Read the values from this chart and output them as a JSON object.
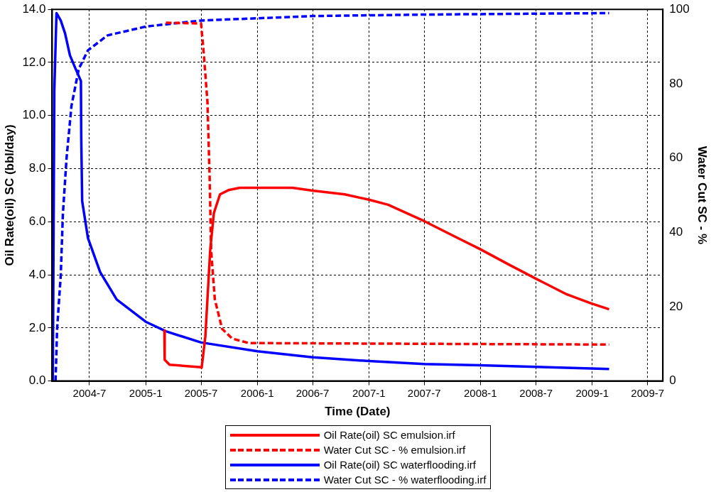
{
  "chart_data": {
    "type": "line",
    "xlabel": "Time (Date)",
    "ylabel": "Oil Rate(oil) SC (bbl/day)",
    "y2label": "Water Cut SC - %",
    "xlim": [
      "2004-03-01",
      "2009-08-20"
    ],
    "xticks": [
      {
        "value": "2004-07-01",
        "label": "2004-7"
      },
      {
        "value": "2005-01-01",
        "label": "2005-1"
      },
      {
        "value": "2005-07-01",
        "label": "2005-7"
      },
      {
        "value": "2006-01-01",
        "label": "2006-1"
      },
      {
        "value": "2006-07-01",
        "label": "2006-7"
      },
      {
        "value": "2007-01-01",
        "label": "2007-1"
      },
      {
        "value": "2007-07-01",
        "label": "2007-7"
      },
      {
        "value": "2008-01-01",
        "label": "2008-1"
      },
      {
        "value": "2008-07-01",
        "label": "2008-7"
      },
      {
        "value": "2009-01-01",
        "label": "2009-1"
      },
      {
        "value": "2009-07-01",
        "label": "2009-7"
      }
    ],
    "ylim": [
      0,
      14
    ],
    "yticks": [
      {
        "value": 0,
        "label": "0.0"
      },
      {
        "value": 2,
        "label": "2.0"
      },
      {
        "value": 4,
        "label": "4.0"
      },
      {
        "value": 6,
        "label": "6.0"
      },
      {
        "value": 8,
        "label": "8.0"
      },
      {
        "value": 10,
        "label": "10.0"
      },
      {
        "value": 12,
        "label": "12.0"
      },
      {
        "value": 14,
        "label": "14.0"
      }
    ],
    "y2lim": [
      0,
      100
    ],
    "y2ticks": [
      0,
      20,
      40,
      60,
      80,
      100
    ],
    "grid": true,
    "legend": "bottom",
    "series": [
      {
        "name": "Oil Rate(oil) SC emulsion.irf",
        "color": "#ff0000",
        "line_style": "solid",
        "x": [
          "2005-03-03",
          "2005-03-04",
          "2005-03-20",
          "2005-07-01",
          "2005-07-03",
          "2005-07-15",
          "2005-07-31",
          "2005-08-12",
          "2005-09-01",
          "2005-10-01",
          "2005-11-05",
          "2006-04-26",
          "2006-07-01",
          "2006-10-14",
          "2007-01-01",
          "2007-03-05",
          "2007-06-26",
          "2007-07-15",
          "2007-10-20",
          "2008-01-01",
          "2008-04-04",
          "2008-07-01",
          "2008-10-10",
          "2008-12-27",
          "2009-02-25"
        ],
        "values": [
          1.9,
          0.8,
          0.61,
          0.52,
          0.5,
          1.67,
          4.94,
          6.33,
          7.03,
          7.2,
          7.28,
          7.28,
          7.17,
          7.03,
          6.83,
          6.64,
          6.05,
          5.94,
          5.38,
          4.96,
          4.38,
          3.85,
          3.26,
          2.93,
          2.7
        ]
      },
      {
        "name": "Water Cut SC - % emulsion.irf",
        "color": "#ff0000",
        "line_style": "dashed",
        "axis": "y2",
        "x": [
          "2005-03-08",
          "2005-07-01",
          "2005-07-10",
          "2005-07-22",
          "2005-07-29",
          "2005-08-03",
          "2005-08-15",
          "2005-09-08",
          "2005-10-11",
          "2005-12-04",
          "2007-07-01",
          "2009-02-25"
        ],
        "values": [
          96.4,
          96.2,
          88,
          75,
          55,
          35,
          22,
          14,
          11.4,
          10.2,
          10,
          9.8
        ]
      },
      {
        "name": "Oil Rate(oil) SC waterflooding.irf",
        "color": "#0000ff",
        "line_style": "solid",
        "x": [
          "2004-03-03",
          "2004-03-08",
          "2004-03-15",
          "2004-03-29",
          "2004-04-12",
          "2004-04-28",
          "2004-05-15",
          "2004-06-03",
          "2004-06-04",
          "2004-06-07",
          "2004-06-26",
          "2004-08-05",
          "2004-09-28",
          "2005-01-01",
          "2005-03-08",
          "2005-07-01",
          "2006-01-01",
          "2006-07-01",
          "2007-01-01",
          "2007-07-01",
          "2008-01-01",
          "2008-07-01",
          "2008-12-27",
          "2009-02-25"
        ],
        "values": [
          0,
          10.96,
          13.86,
          13.58,
          13.1,
          12.27,
          11.8,
          11.3,
          9.2,
          6.78,
          5.38,
          4.1,
          3.07,
          2.23,
          1.87,
          1.45,
          1.12,
          0.89,
          0.75,
          0.64,
          0.59,
          0.53,
          0.47,
          0.45
        ]
      },
      {
        "name": "Water Cut SC - % waterflooding.irf",
        "color": "#0000ff",
        "line_style": "dashed",
        "axis": "y2",
        "x": [
          "2004-03-12",
          "2004-03-17",
          "2004-03-29",
          "2004-04-05",
          "2004-04-17",
          "2004-05-03",
          "2004-05-27",
          "2004-06-26",
          "2004-08-29",
          "2005-01-03",
          "2005-07-01",
          "2006-01-01",
          "2006-07-01",
          "2007-07-01",
          "2009-02-25"
        ],
        "values": [
          0,
          13.9,
          28.5,
          45,
          60,
          74,
          84,
          89,
          93,
          95.4,
          97,
          97.6,
          98.2,
          98.6,
          99
        ]
      }
    ]
  }
}
